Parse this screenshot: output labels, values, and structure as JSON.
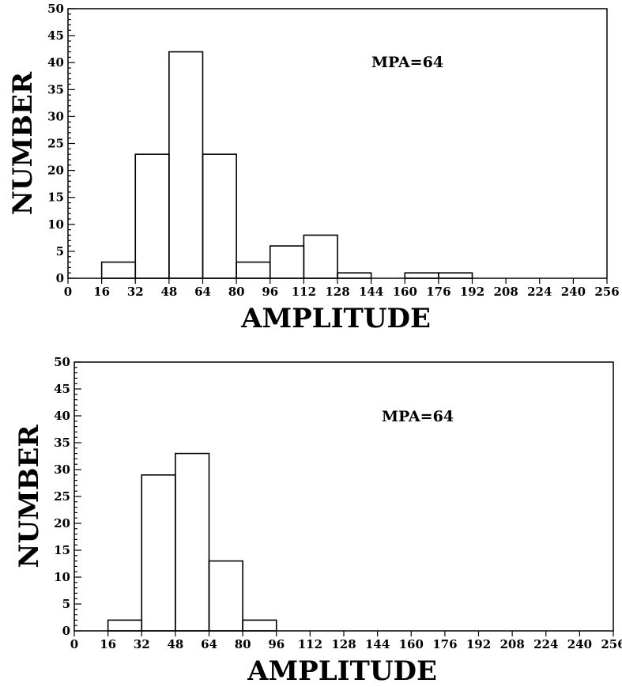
{
  "chart_data": [
    {
      "type": "bar",
      "xlabel": "AMPLITUDE",
      "ylabel": "NUMBER",
      "annotation": "MPA=64",
      "xlim": [
        0,
        256
      ],
      "ylim": [
        0,
        50
      ],
      "x_ticks": [
        0,
        16,
        32,
        48,
        64,
        80,
        96,
        112,
        128,
        144,
        160,
        176,
        192,
        208,
        224,
        240,
        256
      ],
      "y_ticks": [
        0,
        5,
        10,
        15,
        20,
        25,
        30,
        35,
        40,
        45,
        50
      ],
      "bin_edges": [
        16,
        32,
        48,
        64,
        80,
        96,
        112,
        128,
        144,
        160,
        176,
        192
      ],
      "values": [
        3,
        23,
        42,
        23,
        3,
        6,
        8,
        1,
        0,
        1,
        1
      ]
    },
    {
      "type": "bar",
      "xlabel": "AMPLITUDE",
      "ylabel": "NUMBER",
      "annotation": "MPA=64",
      "xlim": [
        0,
        256
      ],
      "ylim": [
        0,
        50
      ],
      "x_ticks": [
        0,
        16,
        32,
        48,
        64,
        80,
        96,
        112,
        128,
        144,
        160,
        176,
        192,
        208,
        224,
        240,
        256
      ],
      "y_ticks": [
        0,
        5,
        10,
        15,
        20,
        25,
        30,
        35,
        40,
        45,
        50
      ],
      "bin_edges": [
        16,
        32,
        48,
        64,
        80,
        96
      ],
      "values": [
        2,
        29,
        33,
        13,
        2
      ]
    }
  ]
}
